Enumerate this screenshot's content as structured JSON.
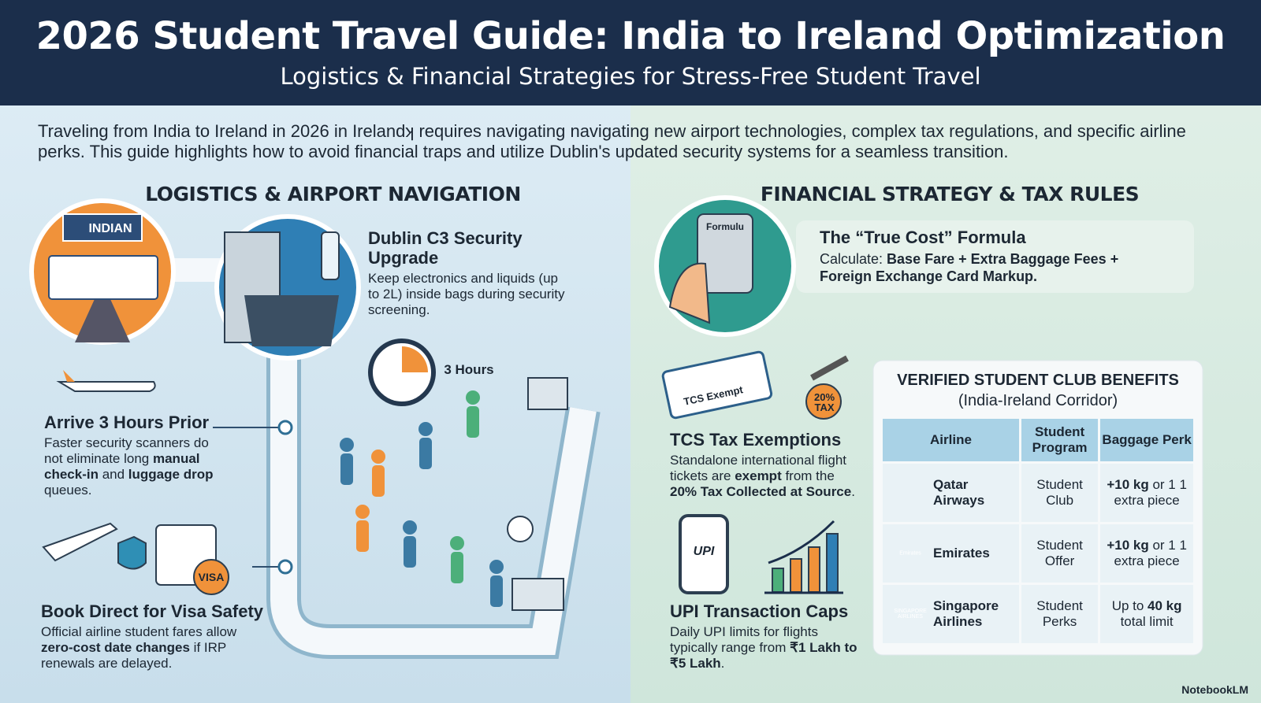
{
  "header": {
    "title": "2026 Student Travel Guide: India to Ireland Optimization",
    "subtitle": "Logistics & Financial Strategies for Stress-Free Student Travel"
  },
  "intro": "Traveling from India to Ireland in 2026 in Irelandʞ requires navigating navigating new airport technologies, complex tax regulations, and specific airline perks. This guide highlights how to avoid financial traps and utilize Dublin's updated security systems for a seamless transition.",
  "logistics": {
    "heading": "LOGISTICS & AIRPORT NAVIGATION",
    "labels": {
      "sign": "INDIAN",
      "clock": "3 Hours",
      "visa": "VISA"
    },
    "items": [
      {
        "title": "Dublin C3 Security Upgrade",
        "body": [
          {
            "text": "Keep electronics and liquids (up to 2L) inside bags during security screening.",
            "bold": false
          }
        ]
      },
      {
        "title": "Arrive 3 Hours Prior",
        "body": [
          {
            "text": "Faster security scanners do not eliminate long ",
            "bold": false
          },
          {
            "text": "manual check-in",
            "bold": true
          },
          {
            "text": " and ",
            "bold": false
          },
          {
            "text": "luggage drop",
            "bold": true
          },
          {
            "text": " queues.",
            "bold": false
          }
        ]
      },
      {
        "title": "Book Direct for Visa Safety",
        "body": [
          {
            "text": "Official airline student fares allow ",
            "bold": false
          },
          {
            "text": "zero-cost date changes",
            "bold": true
          },
          {
            "text": " if IRP renewals are delayed.",
            "bold": false
          }
        ]
      }
    ]
  },
  "finance": {
    "heading": "FINANCIAL STRATEGY & TAX RULES",
    "labels": {
      "calculator": "Formulu",
      "ticket": "TCS Exempt",
      "tax": "20% TAX",
      "phone": "UPI"
    },
    "formula": {
      "title": "The “True Cost” Formula",
      "body": [
        {
          "text": "Calculate: ",
          "bold": false
        },
        {
          "text": "Base Fare + Extra Baggage Fees + Foreign Exchange Card Markup.",
          "bold": true
        }
      ]
    },
    "items": [
      {
        "title": "TCS Tax Exemptions",
        "body": [
          {
            "text": "Standalone international flight tickets are ",
            "bold": false
          },
          {
            "text": "exempt",
            "bold": true
          },
          {
            "text": " from the ",
            "bold": false
          },
          {
            "text": "20% Tax Collected at Source",
            "bold": true
          },
          {
            "text": ".",
            "bold": false
          }
        ]
      },
      {
        "title": "UPI Transaction Caps",
        "body": [
          {
            "text": "Daily UPI limits for flights typically range from ",
            "bold": false
          },
          {
            "text": "₹1 Lakh to ₹5 Lakh",
            "bold": true
          },
          {
            "text": ".",
            "bold": false
          }
        ]
      }
    ],
    "table": {
      "title": "VERIFIED STUDENT CLUB BENEFITS",
      "subtitle": "(India-Ireland Corridor)",
      "columns": [
        "Airline",
        "Student Program",
        "Baggage Perk"
      ],
      "rows": [
        {
          "airline": "Qatar Airways",
          "program": "Student Club",
          "perk": [
            {
              "text": "+10 kg",
              "bold": true
            },
            {
              "text": " or 1 1 extra piece",
              "bold": false
            }
          ]
        },
        {
          "airline": "Emirates",
          "logo": "Emirates",
          "program": "Student Offer",
          "perk": [
            {
              "text": "+10 kg",
              "bold": true
            },
            {
              "text": " or 1 1 extra piece",
              "bold": false
            }
          ]
        },
        {
          "airline": "Singapore Airlines",
          "logo": "SINGAPORE AIRLINES",
          "program": "Student Perks",
          "perk": [
            {
              "text": "Up to ",
              "bold": false
            },
            {
              "text": "40 kg",
              "bold": true
            },
            {
              "text": " total limit",
              "bold": false
            }
          ]
        }
      ]
    }
  },
  "footer": "NotebookLM"
}
